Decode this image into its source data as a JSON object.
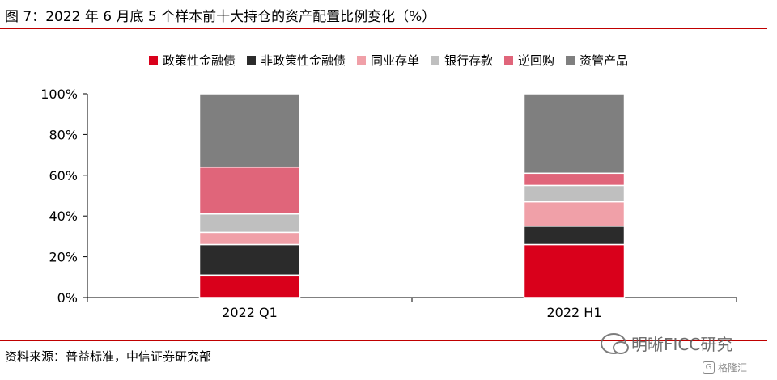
{
  "title": "图 7：2022 年 6 月底 5 个样本前十大持仓的资产配置比例变化（%）",
  "source": "资料来源：普益标准，中信证券研究部",
  "watermark": {
    "text": "明晰FICC研究",
    "logo_icon": "wechat-icon"
  },
  "watermark2": {
    "text": "格隆汇",
    "icon": "G"
  },
  "colors": {
    "rule": "#c00000",
    "axis": "#000000"
  },
  "chart_data": {
    "type": "bar",
    "stacked": true,
    "categories": [
      "2022 Q1",
      "2022 H1"
    ],
    "y_ticks": [
      "0%",
      "20%",
      "40%",
      "60%",
      "80%",
      "100%"
    ],
    "ylim": [
      0,
      100
    ],
    "grid": false,
    "legend_position": "top",
    "series": [
      {
        "name": "政策性金融债",
        "color": "#d9001b",
        "values": [
          11,
          26
        ]
      },
      {
        "name": "非政策性金融债",
        "color": "#2b2b2b",
        "values": [
          15,
          9
        ]
      },
      {
        "name": "同业存单",
        "color": "#f0a0a8",
        "values": [
          6,
          12
        ]
      },
      {
        "name": "银行存款",
        "color": "#bfbfbf",
        "values": [
          9,
          8
        ]
      },
      {
        "name": "逆回购",
        "color": "#e0657a",
        "values": [
          23,
          6
        ]
      },
      {
        "name": "资管产品",
        "color": "#7f7f7f",
        "values": [
          36,
          39
        ]
      }
    ]
  }
}
